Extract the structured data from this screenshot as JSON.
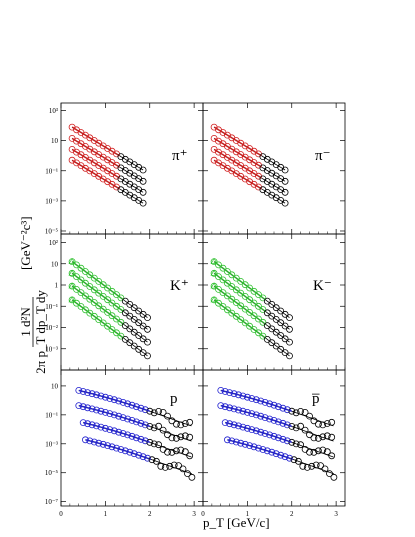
{
  "chart_data": {
    "type": "scatter",
    "xlabel": "p_T [GeV/c]",
    "ylabel_numerator": "1    d²N",
    "ylabel_denominator": "2π p_T dp_T dy",
    "ylabel_unit": "[GeV⁻²c³]",
    "x_ticks": [
      "0",
      "1",
      "2",
      "3"
    ],
    "xlim": [
      0,
      3.2
    ],
    "ylog": true,
    "panels": [
      {
        "label": "π⁺",
        "row": 0,
        "col": 0,
        "fit_color": "#d21e1e",
        "ylim_exp": [
          -5.2,
          3.5
        ],
        "y_ticks": [
          "10³",
          "10",
          "10⁻¹",
          "10⁻³",
          "10⁻⁵"
        ],
        "y_tick_exp": [
          3,
          1,
          -1,
          -3,
          -5
        ],
        "curves": [
          {
            "a": 1.9,
            "s": 1.78,
            "x": [
              0.25,
              1.85
            ]
          },
          {
            "a": 1.15,
            "s": 1.78,
            "x": [
              0.25,
              1.85
            ]
          },
          {
            "a": 0.42,
            "s": 1.78,
            "x": [
              0.25,
              1.85
            ]
          },
          {
            "a": -0.3,
            "s": 1.78,
            "x": [
              0.25,
              1.85
            ]
          }
        ],
        "data_x": [
          0.25,
          1.85
        ],
        "data_step": 0.1
      },
      {
        "label": "π⁻",
        "row": 0,
        "col": 1,
        "fit_color": "#d21e1e",
        "ylim_exp": [
          -5.2,
          3.5
        ],
        "y_ticks": [],
        "y_tick_exp": [
          3,
          1,
          -1,
          -3,
          -5
        ],
        "curves": [
          {
            "a": 1.9,
            "s": 1.78,
            "x": [
              0.25,
              1.85
            ]
          },
          {
            "a": 1.15,
            "s": 1.78,
            "x": [
              0.25,
              1.85
            ]
          },
          {
            "a": 0.42,
            "s": 1.78,
            "x": [
              0.25,
              1.85
            ]
          },
          {
            "a": -0.3,
            "s": 1.78,
            "x": [
              0.25,
              1.85
            ]
          }
        ],
        "data_x": [
          0.25,
          1.85
        ],
        "data_step": 0.1
      },
      {
        "label": "K⁺",
        "row": 1,
        "col": 0,
        "fit_color": "#2ec02e",
        "ylim_exp": [
          -4.0,
          2.4
        ],
        "y_ticks": [
          "10²",
          "10",
          "1",
          "10⁻¹",
          "10⁻²",
          "10⁻³"
        ],
        "y_tick_exp": [
          2,
          1,
          0,
          -1,
          -2,
          -3
        ],
        "curves": [
          {
            "a": 1.1,
            "s": 1.55,
            "x": [
              0.25,
              1.95
            ]
          },
          {
            "a": 0.55,
            "s": 1.55,
            "x": [
              0.25,
              1.95
            ]
          },
          {
            "a": -0.05,
            "s": 1.55,
            "x": [
              0.25,
              1.95
            ]
          },
          {
            "a": -0.7,
            "s": 1.55,
            "x": [
              0.25,
              1.95
            ]
          }
        ],
        "data_x": [
          0.25,
          1.95
        ],
        "data_step": 0.1
      },
      {
        "label": "K⁻",
        "row": 1,
        "col": 1,
        "fit_color": "#2ec02e",
        "ylim_exp": [
          -4.0,
          2.4
        ],
        "y_ticks": [],
        "y_tick_exp": [
          2,
          1,
          0,
          -1,
          -2,
          -3
        ],
        "curves": [
          {
            "a": 1.1,
            "s": 1.55,
            "x": [
              0.25,
              1.95
            ]
          },
          {
            "a": 0.55,
            "s": 1.55,
            "x": [
              0.25,
              1.95
            ]
          },
          {
            "a": -0.05,
            "s": 1.55,
            "x": [
              0.25,
              1.95
            ]
          },
          {
            "a": -0.7,
            "s": 1.55,
            "x": [
              0.25,
              1.95
            ]
          }
        ],
        "data_x": [
          0.25,
          1.95
        ],
        "data_step": 0.1
      },
      {
        "label": "p",
        "row": 2,
        "col": 0,
        "fit_color": "#2020d0",
        "ylim_exp": [
          -7.3,
          2.1
        ],
        "y_ticks": [
          "10",
          "10⁻¹",
          "10⁻³",
          "10⁻⁵",
          "10⁻⁷"
        ],
        "y_tick_exp": [
          1,
          -1,
          -3,
          -5,
          -7
        ],
        "curves": [
          {
            "a": 0.75,
            "s": 0.9,
            "x": [
              0.4,
              2.95
            ]
          },
          {
            "a": -0.3,
            "s": 0.9,
            "x": [
              0.4,
              2.95
            ]
          },
          {
            "a": -1.4,
            "s": 0.9,
            "x": [
              0.5,
              2.95
            ]
          },
          {
            "a": -2.55,
            "s": 0.9,
            "x": [
              0.55,
              2.95
            ]
          }
        ],
        "data_x": [
          0.4,
          2.95
        ],
        "data_step": 0.1
      },
      {
        "label": "p̅",
        "row": 2,
        "col": 1,
        "fit_color": "#2020d0",
        "ylim_exp": [
          -7.3,
          2.1
        ],
        "y_ticks": [],
        "y_tick_exp": [
          1,
          -1,
          -3,
          -5,
          -7
        ],
        "curves": [
          {
            "a": 0.75,
            "s": 0.9,
            "x": [
              0.4,
              2.95
            ]
          },
          {
            "a": -0.3,
            "s": 0.9,
            "x": [
              0.4,
              2.95
            ]
          },
          {
            "a": -1.4,
            "s": 0.9,
            "x": [
              0.5,
              2.95
            ]
          },
          {
            "a": -2.55,
            "s": 0.9,
            "x": [
              0.55,
              2.95
            ]
          }
        ],
        "data_x": [
          0.4,
          2.95
        ],
        "data_step": 0.1
      }
    ]
  }
}
